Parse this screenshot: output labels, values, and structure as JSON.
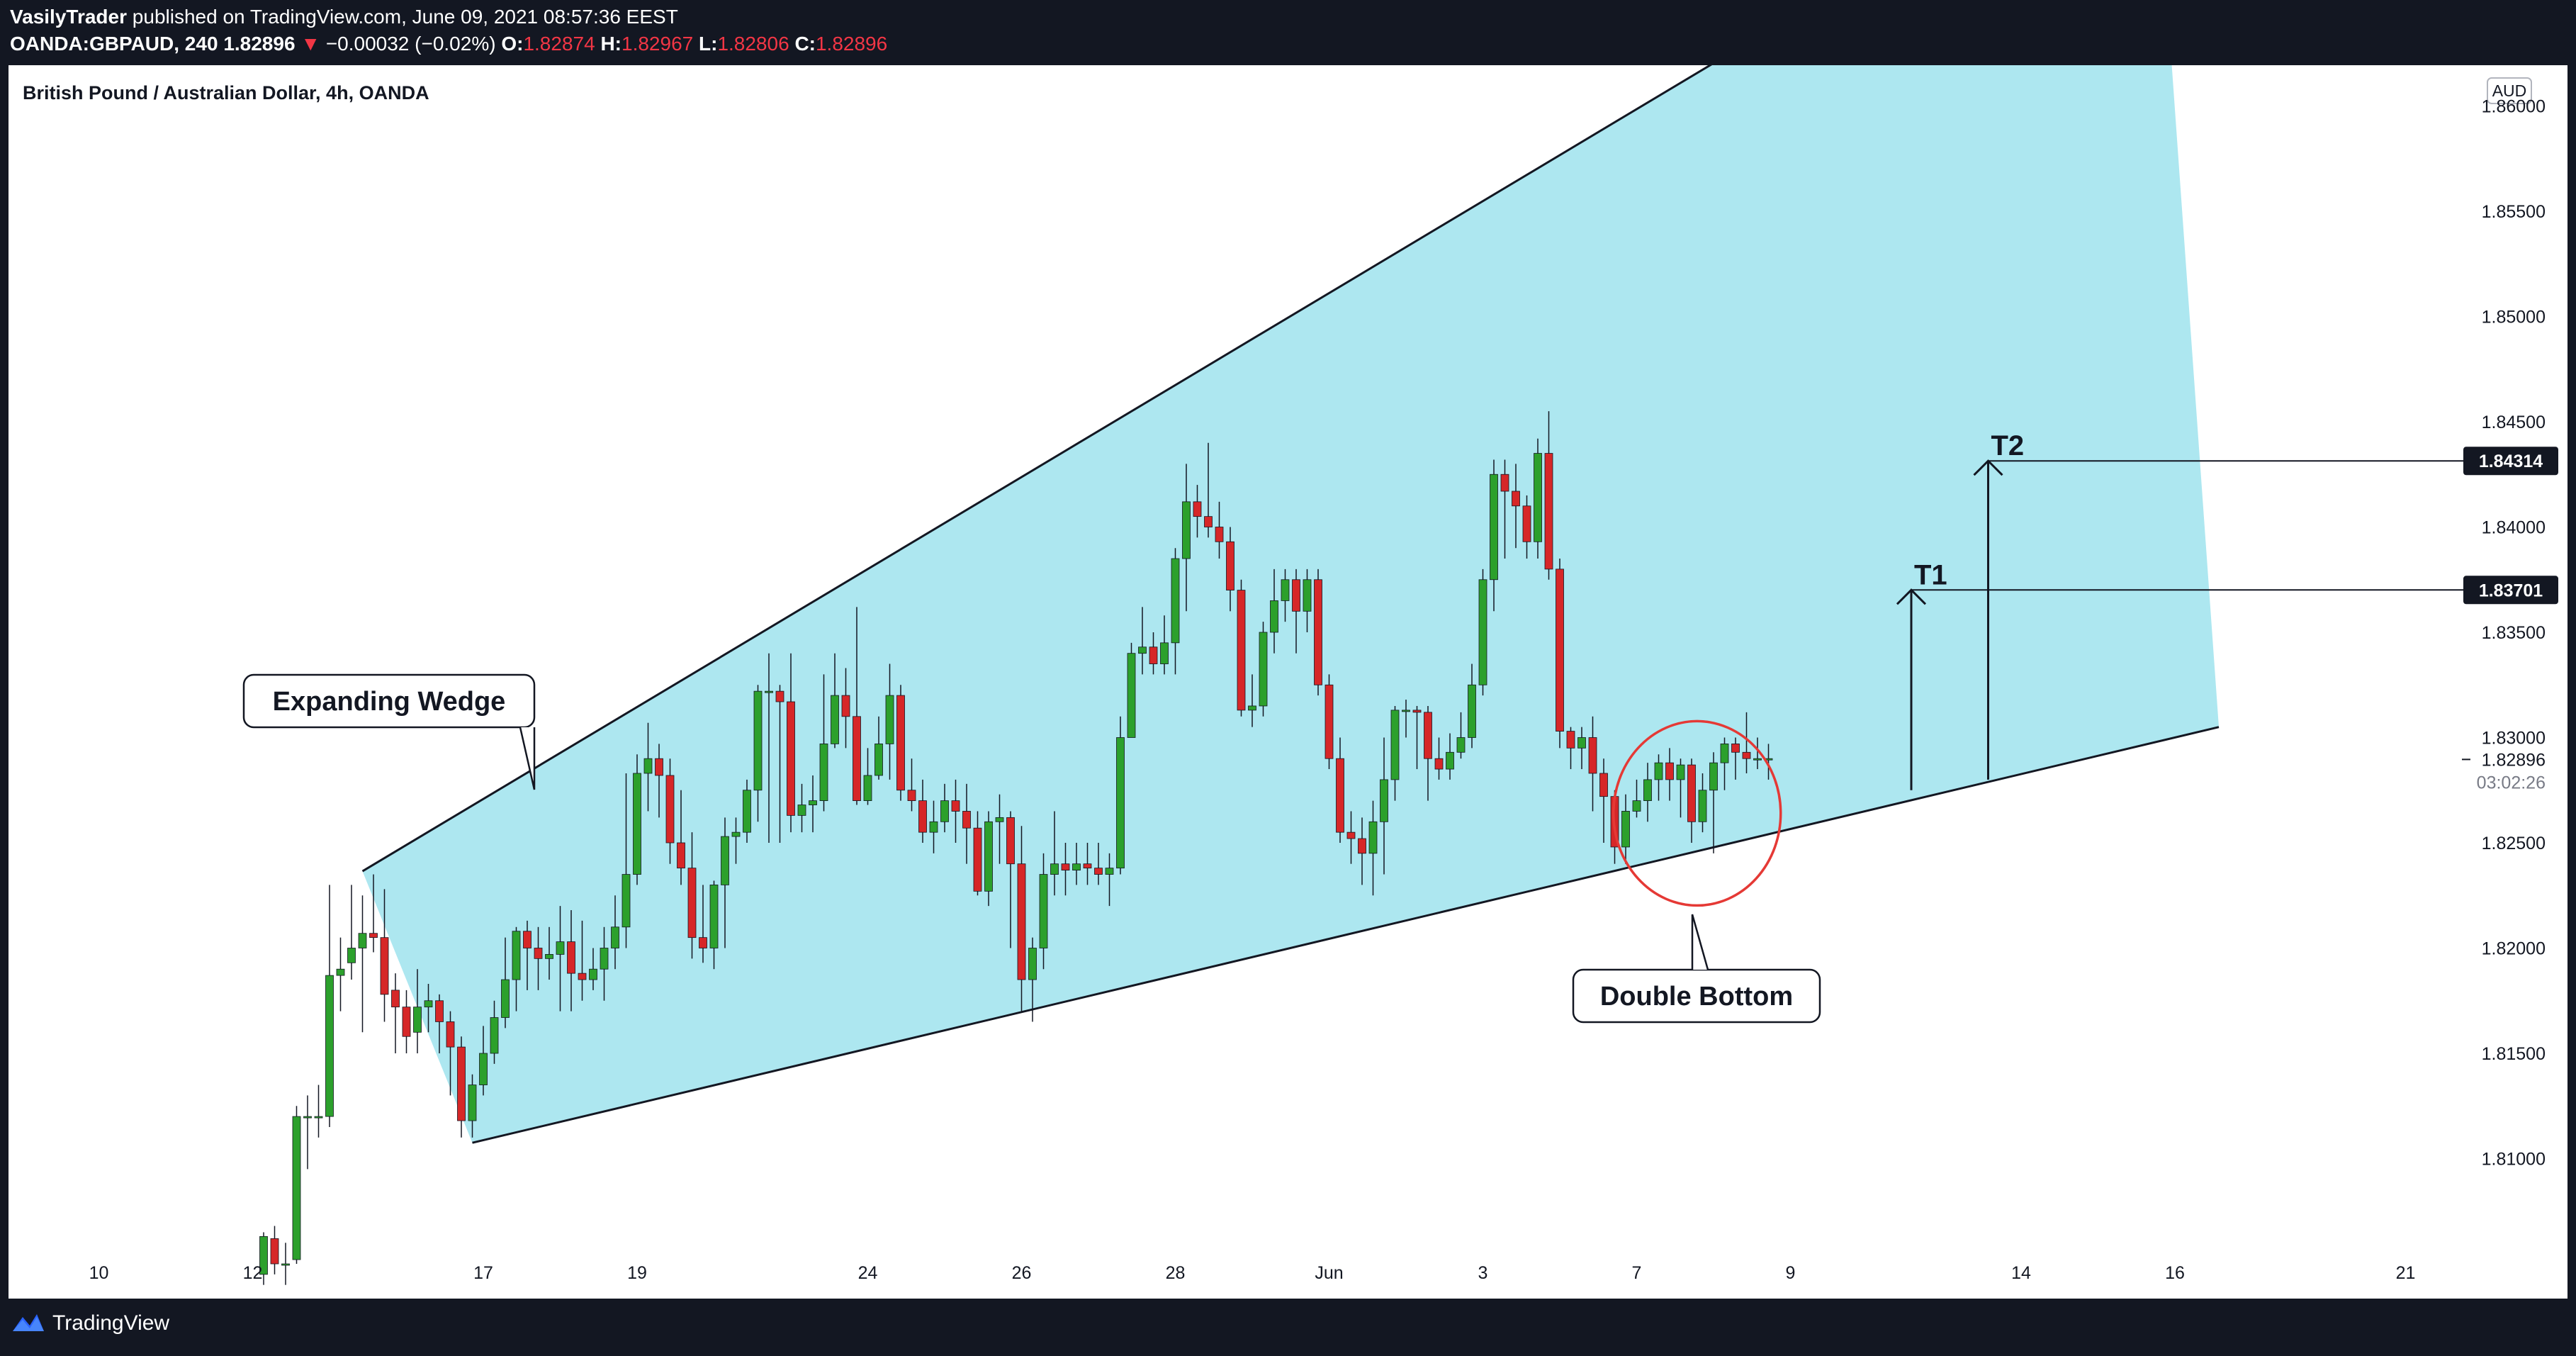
{
  "header": {
    "author": "VasilyTrader",
    "published_text": "published on TradingView.com, June 09, 2021 08:57:36 EEST",
    "symbol": "OANDA:GBPAUD, 240",
    "last": "1.82896",
    "arrow": "▼",
    "change": "−0.00032 (−0.02%)",
    "o_label": "O:",
    "o_value": "1.82874",
    "h_label": "H:",
    "h_value": "1.82967",
    "l_label": "L:",
    "l_value": "1.82806",
    "c_label": "C:",
    "c_value": "1.82896"
  },
  "footer": {
    "brand": "TradingView"
  },
  "colors": {
    "up": "#2ca02c",
    "down": "#d62728",
    "wedge_fill": "#a9e6ef",
    "circle": "#e53935",
    "frame": "#131722"
  },
  "chart_data": {
    "type": "candlestick",
    "title": "British Pound / Australian Dollar, 4h, OANDA",
    "currency_label": "AUD",
    "ylim": [
      1.8045,
      1.8605
    ],
    "y_ticks": [
      "1.86000",
      "1.85500",
      "1.85000",
      "1.84500",
      "1.84000",
      "1.83500",
      "1.83000",
      "1.82500",
      "1.82000",
      "1.81500",
      "1.81000"
    ],
    "x_ticks": [
      {
        "label": "10",
        "bar": -15
      },
      {
        "label": "12",
        "bar": -1
      },
      {
        "label": "17",
        "bar": 20
      },
      {
        "label": "19",
        "bar": 34
      },
      {
        "label": "24",
        "bar": 55
      },
      {
        "label": "26",
        "bar": 69
      },
      {
        "label": "28",
        "bar": 83
      },
      {
        "label": "Jun",
        "bar": 97
      },
      {
        "label": "3",
        "bar": 111
      },
      {
        "label": "7",
        "bar": 125
      },
      {
        "label": "9",
        "bar": 139
      },
      {
        "label": "14",
        "bar": 160
      },
      {
        "label": "16",
        "bar": 174
      },
      {
        "label": "21",
        "bar": 195
      }
    ],
    "current_price": "1.82896",
    "countdown": "03:02:26",
    "price_labels": [
      "1.84314",
      "1.83701"
    ],
    "targets": [
      {
        "label": "T1",
        "price": 1.83701,
        "base": 1.8275,
        "bar": 150
      },
      {
        "label": "T2",
        "price": 1.84314,
        "base": 1.828,
        "bar": 157
      }
    ],
    "wedge": {
      "upper": [
        {
          "bar": 9,
          "price": 1.82365
        },
        {
          "bar": 154,
          "price": 1.8689
        }
      ],
      "lower": [
        {
          "bar": 19,
          "price": 1.81075
        },
        {
          "bar": 178,
          "price": 1.8305
        }
      ]
    },
    "annotations": [
      {
        "text": "Expanding Wedge",
        "bar": 7,
        "price": 1.8318
      },
      {
        "text": "Double Bottom",
        "bar": 133,
        "price": 1.819
      }
    ],
    "candles": [
      [
        1.8045,
        1.8063,
        1.8065,
        1.804
      ],
      [
        1.8062,
        1.805,
        1.8068,
        1.8045
      ],
      [
        1.805,
        1.805,
        1.806,
        1.804
      ],
      [
        1.8052,
        1.812,
        1.8125,
        1.805
      ],
      [
        1.812,
        1.812,
        1.813,
        1.8095
      ],
      [
        1.812,
        1.812,
        1.8135,
        1.811
      ],
      [
        1.812,
        1.8187,
        1.823,
        1.8115
      ],
      [
        1.8187,
        1.819,
        1.8205,
        1.817
      ],
      [
        1.8193,
        1.82,
        1.823,
        1.8185
      ],
      [
        1.82,
        1.8207,
        1.8225,
        1.816
      ],
      [
        1.8207,
        1.8205,
        1.8235,
        1.8198
      ],
      [
        1.8205,
        1.8178,
        1.8228,
        1.8165
      ],
      [
        1.818,
        1.8172,
        1.8188,
        1.815
      ],
      [
        1.8172,
        1.8158,
        1.818,
        1.815
      ],
      [
        1.816,
        1.8172,
        1.819,
        1.815
      ],
      [
        1.8172,
        1.8175,
        1.8183,
        1.816
      ],
      [
        1.8175,
        1.8165,
        1.8178,
        1.815
      ],
      [
        1.8165,
        1.8153,
        1.817,
        1.813
      ],
      [
        1.8153,
        1.8118,
        1.8158,
        1.811
      ],
      [
        1.8118,
        1.8135,
        1.814,
        1.811
      ],
      [
        1.8135,
        1.815,
        1.8163,
        1.813
      ],
      [
        1.815,
        1.8167,
        1.8175,
        1.8145
      ],
      [
        1.8167,
        1.8185,
        1.8205,
        1.8162
      ],
      [
        1.8185,
        1.8208,
        1.821,
        1.817
      ],
      [
        1.8208,
        1.82,
        1.8213,
        1.818
      ],
      [
        1.82,
        1.8195,
        1.821,
        1.818
      ],
      [
        1.8195,
        1.8197,
        1.821,
        1.8185
      ],
      [
        1.8197,
        1.8203,
        1.822,
        1.817
      ],
      [
        1.8203,
        1.8188,
        1.8218,
        1.817
      ],
      [
        1.8188,
        1.8185,
        1.8213,
        1.8175
      ],
      [
        1.8185,
        1.819,
        1.82,
        1.818
      ],
      [
        1.819,
        1.82,
        1.821,
        1.8175
      ],
      [
        1.82,
        1.821,
        1.8225,
        1.819
      ],
      [
        1.821,
        1.8235,
        1.8283,
        1.82
      ],
      [
        1.8235,
        1.8283,
        1.8292,
        1.823
      ],
      [
        1.8283,
        1.829,
        1.8307,
        1.8265
      ],
      [
        1.829,
        1.8282,
        1.8297,
        1.8262
      ],
      [
        1.8282,
        1.825,
        1.829,
        1.824
      ],
      [
        1.825,
        1.8238,
        1.8275,
        1.823
      ],
      [
        1.8238,
        1.8205,
        1.8255,
        1.8195
      ],
      [
        1.8205,
        1.82,
        1.823,
        1.8193
      ],
      [
        1.82,
        1.823,
        1.8232,
        1.819
      ],
      [
        1.823,
        1.8253,
        1.8262,
        1.82
      ],
      [
        1.8253,
        1.8255,
        1.8262,
        1.824
      ],
      [
        1.8255,
        1.8275,
        1.828,
        1.825
      ],
      [
        1.8275,
        1.8322,
        1.8325,
        1.826
      ],
      [
        1.8322,
        1.8322,
        1.834,
        1.825
      ],
      [
        1.8322,
        1.8317,
        1.8325,
        1.825
      ],
      [
        1.8317,
        1.8263,
        1.834,
        1.8255
      ],
      [
        1.8263,
        1.8268,
        1.8278,
        1.8255
      ],
      [
        1.8268,
        1.827,
        1.8282,
        1.8255
      ],
      [
        1.827,
        1.8297,
        1.833,
        1.8265
      ],
      [
        1.8297,
        1.832,
        1.834,
        1.8295
      ],
      [
        1.832,
        1.831,
        1.8333,
        1.8295
      ],
      [
        1.831,
        1.827,
        1.8362,
        1.8268
      ],
      [
        1.827,
        1.8282,
        1.8295,
        1.8268
      ],
      [
        1.8282,
        1.8297,
        1.831,
        1.828
      ],
      [
        1.8297,
        1.832,
        1.8335,
        1.828
      ],
      [
        1.832,
        1.8275,
        1.8325,
        1.827
      ],
      [
        1.8275,
        1.827,
        1.829,
        1.8265
      ],
      [
        1.827,
        1.8255,
        1.828,
        1.825
      ],
      [
        1.8255,
        1.826,
        1.827,
        1.8245
      ],
      [
        1.826,
        1.827,
        1.8278,
        1.8255
      ],
      [
        1.827,
        1.8265,
        1.828,
        1.825
      ],
      [
        1.8265,
        1.8257,
        1.8278,
        1.824
      ],
      [
        1.8257,
        1.8227,
        1.8265,
        1.8225
      ],
      [
        1.8227,
        1.826,
        1.8265,
        1.822
      ],
      [
        1.826,
        1.8262,
        1.8273,
        1.824
      ],
      [
        1.8262,
        1.824,
        1.8265,
        1.82
      ],
      [
        1.824,
        1.8185,
        1.8258,
        1.817
      ],
      [
        1.8185,
        1.82,
        1.8205,
        1.8165
      ],
      [
        1.82,
        1.8235,
        1.8245,
        1.819
      ],
      [
        1.8235,
        1.824,
        1.8265,
        1.8225
      ],
      [
        1.824,
        1.8237,
        1.825,
        1.8225
      ],
      [
        1.8237,
        1.824,
        1.825,
        1.823
      ],
      [
        1.824,
        1.8238,
        1.825,
        1.823
      ],
      [
        1.8238,
        1.8235,
        1.825,
        1.823
      ],
      [
        1.8235,
        1.8238,
        1.8245,
        1.822
      ],
      [
        1.8238,
        1.83,
        1.831,
        1.8235
      ],
      [
        1.83,
        1.834,
        1.8345,
        1.83
      ],
      [
        1.834,
        1.8343,
        1.8362,
        1.833
      ],
      [
        1.8343,
        1.8335,
        1.835,
        1.833
      ],
      [
        1.8335,
        1.8345,
        1.8358,
        1.833
      ],
      [
        1.8345,
        1.8385,
        1.839,
        1.833
      ],
      [
        1.8385,
        1.8412,
        1.843,
        1.836
      ],
      [
        1.8412,
        1.8405,
        1.842,
        1.8395
      ],
      [
        1.8405,
        1.84,
        1.844,
        1.8395
      ],
      [
        1.84,
        1.8393,
        1.8412,
        1.8385
      ],
      [
        1.8393,
        1.837,
        1.84,
        1.836
      ],
      [
        1.837,
        1.8313,
        1.8375,
        1.831
      ],
      [
        1.8313,
        1.8315,
        1.833,
        1.8305
      ],
      [
        1.8315,
        1.835,
        1.8355,
        1.831
      ],
      [
        1.835,
        1.8365,
        1.838,
        1.834
      ],
      [
        1.8365,
        1.8375,
        1.838,
        1.8355
      ],
      [
        1.8375,
        1.836,
        1.838,
        1.834
      ],
      [
        1.836,
        1.8375,
        1.838,
        1.835
      ],
      [
        1.8375,
        1.8325,
        1.838,
        1.832
      ],
      [
        1.8325,
        1.829,
        1.833,
        1.8285
      ],
      [
        1.829,
        1.8255,
        1.83,
        1.825
      ],
      [
        1.8255,
        1.8252,
        1.8265,
        1.824
      ],
      [
        1.8252,
        1.8245,
        1.8262,
        1.823
      ],
      [
        1.8245,
        1.826,
        1.827,
        1.8225
      ],
      [
        1.826,
        1.828,
        1.83,
        1.8235
      ],
      [
        1.828,
        1.8313,
        1.8315,
        1.827
      ],
      [
        1.8313,
        1.8313,
        1.8318,
        1.83
      ],
      [
        1.8313,
        1.8312,
        1.8315,
        1.8285
      ],
      [
        1.8312,
        1.829,
        1.8315,
        1.827
      ],
      [
        1.829,
        1.8285,
        1.83,
        1.828
      ],
      [
        1.8285,
        1.8293,
        1.8302,
        1.828
      ],
      [
        1.8293,
        1.83,
        1.8312,
        1.829
      ],
      [
        1.83,
        1.8325,
        1.8335,
        1.8295
      ],
      [
        1.8325,
        1.8375,
        1.838,
        1.832
      ],
      [
        1.8375,
        1.8425,
        1.8432,
        1.836
      ],
      [
        1.8425,
        1.8417,
        1.8432,
        1.8385
      ],
      [
        1.8417,
        1.841,
        1.843,
        1.839
      ],
      [
        1.841,
        1.8393,
        1.8415,
        1.8385
      ],
      [
        1.8393,
        1.8435,
        1.8442,
        1.8385
      ],
      [
        1.8435,
        1.838,
        1.8455,
        1.8375
      ],
      [
        1.838,
        1.8303,
        1.8385,
        1.8295
      ],
      [
        1.8303,
        1.8295,
        1.8305,
        1.8285
      ],
      [
        1.8295,
        1.83,
        1.8305,
        1.8285
      ],
      [
        1.83,
        1.8283,
        1.831,
        1.8265
      ],
      [
        1.8283,
        1.8272,
        1.829,
        1.825
      ],
      [
        1.8272,
        1.8248,
        1.8275,
        1.824
      ],
      [
        1.8248,
        1.8265,
        1.8273,
        1.824
      ],
      [
        1.8265,
        1.827,
        1.828,
        1.8262
      ],
      [
        1.827,
        1.828,
        1.8288,
        1.826
      ],
      [
        1.828,
        1.8288,
        1.8292,
        1.827
      ],
      [
        1.8288,
        1.828,
        1.8295,
        1.827
      ],
      [
        1.828,
        1.8287,
        1.829,
        1.8262
      ],
      [
        1.8287,
        1.826,
        1.829,
        1.825
      ],
      [
        1.826,
        1.8275,
        1.8283,
        1.8255
      ],
      [
        1.8275,
        1.8288,
        1.8293,
        1.8245
      ],
      [
        1.8288,
        1.8297,
        1.83,
        1.8275
      ],
      [
        1.8297,
        1.8293,
        1.83,
        1.828
      ],
      [
        1.8293,
        1.829,
        1.8312,
        1.8283
      ],
      [
        1.829,
        1.829,
        1.83,
        1.8285
      ],
      [
        1.829,
        1.829,
        1.8297,
        1.828
      ]
    ]
  }
}
